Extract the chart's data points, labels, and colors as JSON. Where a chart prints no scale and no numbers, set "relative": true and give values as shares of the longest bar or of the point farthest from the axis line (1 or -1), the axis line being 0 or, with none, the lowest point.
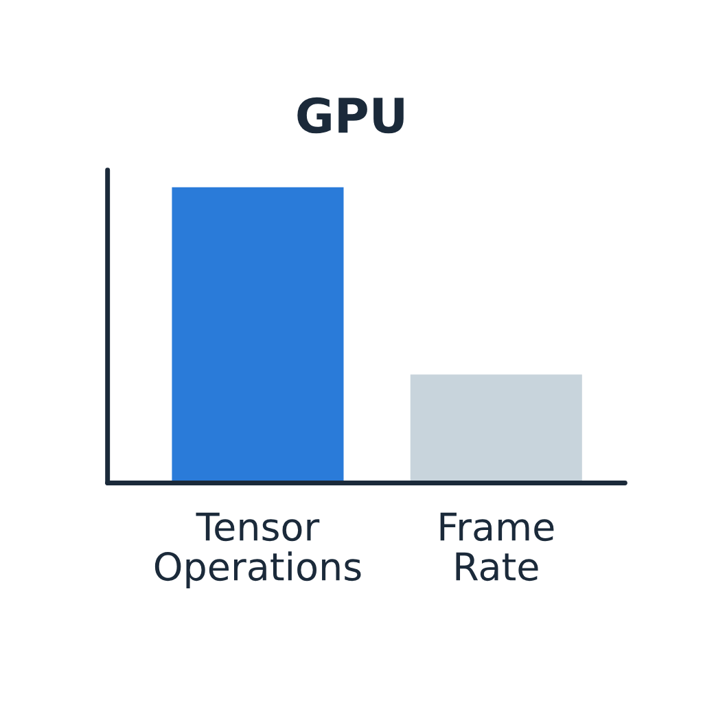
{
  "chart_data": {
    "type": "bar",
    "title": "GPU",
    "relative": true,
    "categories": [
      "Tensor\nOperations",
      "Frame\nRate"
    ],
    "values": [
      1,
      0.367
    ],
    "colors": [
      "#2a7bd9",
      "#c8d4dc"
    ],
    "grid": false,
    "legend": false
  }
}
